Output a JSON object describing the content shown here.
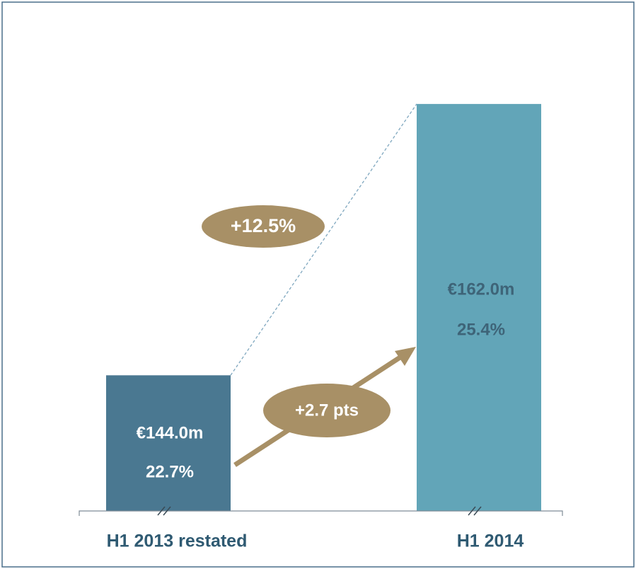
{
  "chart_data": {
    "type": "bar",
    "categories": [
      "H1 2013 restated",
      "H1 2014"
    ],
    "values": [
      144.0,
      162.0
    ],
    "value_labels": [
      "€144.0m",
      "€162.0m"
    ],
    "colors": [
      "#4a7891",
      "#62a5b8"
    ],
    "label_colors": [
      "#ffffff",
      "#3e6478"
    ],
    "margins": {
      "values": [
        22.7,
        25.4
      ],
      "value_labels": [
        "22.7%",
        "25.4%"
      ]
    },
    "ylim": [
      135,
      165
    ],
    "broken_axis": true,
    "annotations": {
      "growth": "+12.5%",
      "margin_change": "+2.7 pts"
    }
  }
}
